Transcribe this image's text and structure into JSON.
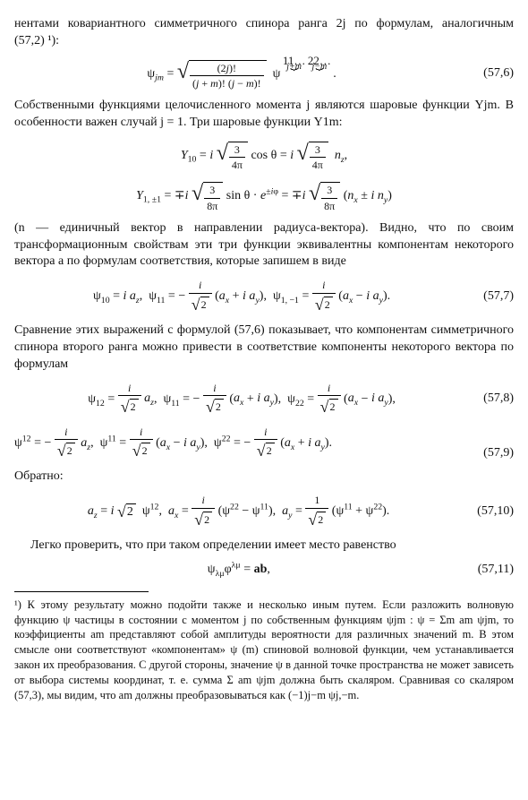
{
  "para1": "нентами ковариантного симметричного спинора ранга 2j по формулам, аналогичным (57,2) ¹):",
  "eq57_6_num": "(57,6)",
  "para2": "Собственными функциями целочисленного момента j являются шаровые функции Yjm. В особенности важен случай j = 1. Три шаровые функции Y1m:",
  "para3": "(n — единичный вектор в направлении радиуса-вектора). Видно, что по своим трансформационным свойствам эти три функции эквивалентны компонентам некоторого вектора a по формулам соответствия, которые запишем в виде",
  "eq57_7_num": "(57,7)",
  "para4": "Сравнение этих выражений с формулой (57,6) показывает, что компонентам симметричного спинора второго ранга можно привести в соответствие компоненты некоторого вектора по формулам",
  "eq57_8_num": "(57,8)",
  "eq57_9_num": "(57,9)",
  "obratno": "Обратно:",
  "eq57_10_num": "(57,10)",
  "para5": "Легко проверить, что при таком определении имеет место равенство",
  "eq57_11": "ψλμ φλμ = ab,",
  "eq57_11_num": "(57,11)",
  "footnote1": "¹) К этому результату можно подойти также и несколько иным путем. Если разложить волновую функцию ψ частицы в состоянии с моментом j по собственным функциям ψjm : ψ = Σm am ψjm, то коэффициенты am представляют собой амплитуды вероятности для различных значений m. В этом смысле они соответствуют «компонентам» ψ (m) спиновой волновой функции, чем устанавливается закон их преобразования. С другой стороны, значение ψ в данной точке пространства не может зависеть от выбора системы координат, т. е. сумма Σ am ψjm должна быть скаляром. Сравнивая со скаляром (57,3), мы видим, что am должны преобразовываться как (−1)j−m ψj,−m."
}
